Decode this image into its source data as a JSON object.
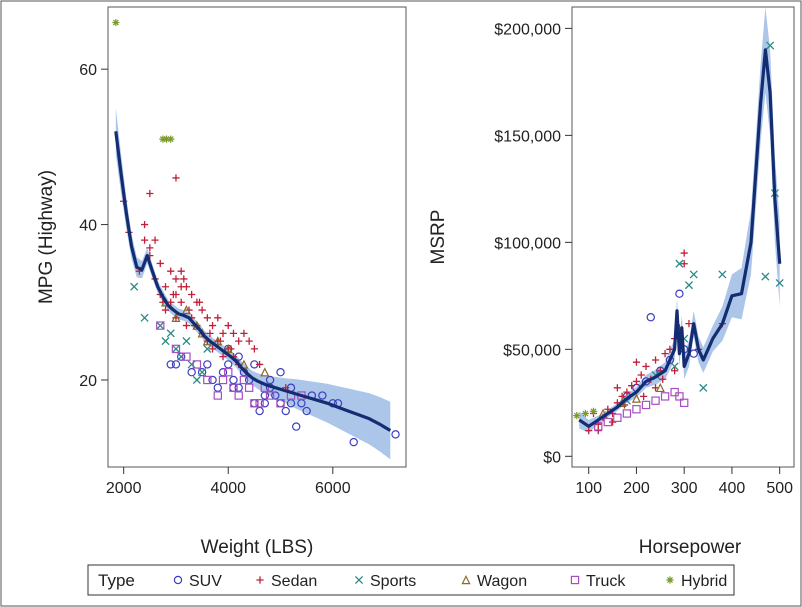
{
  "chart_data": [
    {
      "type": "scatter",
      "ylabel": "MPG (Highway)",
      "xlabel": "Weight (LBS)",
      "xlim": [
        1700,
        7400
      ],
      "ylim": [
        8.8,
        68
      ],
      "xticks": [
        2000,
        4000,
        6000
      ],
      "yticks": [
        20,
        40,
        60
      ],
      "xtick_labels": [
        "2000",
        "4000",
        "6000"
      ],
      "ytick_labels": [
        "20",
        "40",
        "60"
      ],
      "fit_line": {
        "x": [
          1850,
          1950,
          2050,
          2150,
          2250,
          2350,
          2450,
          2550,
          2650,
          2750,
          2850,
          2950,
          3050,
          3150,
          3250,
          3350,
          3450,
          3550,
          3650,
          3750,
          3850,
          3950,
          4050,
          4150,
          4250,
          4350,
          4450,
          4550,
          4650,
          4750,
          4900,
          5100,
          5300,
          5500,
          5700,
          5900,
          6100,
          6300,
          6500,
          6700,
          6900,
          7100
        ],
        "y": [
          52,
          46.5,
          41.5,
          37.2,
          34.5,
          34.2,
          36,
          34,
          32,
          30.7,
          29.6,
          29,
          28.5,
          28.3,
          28,
          27.2,
          26.5,
          25.6,
          25,
          24.5,
          24,
          23.5,
          23,
          22.4,
          21.6,
          20.9,
          20.3,
          19.9,
          19.6,
          19.3,
          19,
          18.6,
          18.2,
          17.8,
          17.4,
          17,
          16.5,
          16,
          15.5,
          15,
          14.3,
          13.5
        ],
        "band": [
          3,
          2.5,
          2,
          1.6,
          1.3,
          1.1,
          1,
          0.9,
          0.8,
          0.8,
          0.7,
          0.7,
          0.7,
          0.7,
          0.7,
          0.7,
          0.7,
          0.7,
          0.7,
          0.7,
          0.7,
          0.7,
          0.7,
          0.8,
          0.8,
          0.9,
          0.9,
          1,
          1.1,
          1.2,
          1.4,
          1.6,
          1.9,
          2.1,
          2.3,
          2.5,
          2.7,
          2.9,
          3.1,
          3.3,
          3.5,
          3.7
        ]
      },
      "series": [
        {
          "name": "SUV",
          "x": [
            2900,
            3000,
            3100,
            3300,
            3500,
            3700,
            3800,
            3900,
            4000,
            4100,
            4200,
            4300,
            4400,
            4500,
            4600,
            4700,
            4800,
            4900,
            5000,
            5100,
            5200,
            5300,
            5400,
            5600,
            5800,
            6000,
            6100,
            6400,
            7200,
            4000,
            4500,
            5000,
            3600,
            4200,
            4800,
            5500,
            4100,
            4700,
            5200
          ],
          "y": [
            22,
            22,
            23,
            21,
            21,
            20,
            19,
            21,
            22,
            20,
            19,
            21,
            20,
            17,
            16,
            18,
            19,
            18,
            17,
            16,
            17,
            14,
            17,
            18,
            18,
            17,
            17,
            12,
            13,
            24,
            22,
            21,
            22,
            23,
            20,
            16,
            19,
            17,
            19
          ]
        },
        {
          "name": "Sedan",
          "x": [
            2000,
            2100,
            2300,
            2400,
            2500,
            2500,
            2600,
            2600,
            2700,
            2700,
            2800,
            2800,
            2900,
            2900,
            3000,
            3000,
            3000,
            3100,
            3100,
            3200,
            3200,
            3300,
            3300,
            3400,
            3400,
            3500,
            3500,
            3600,
            3600,
            3700,
            3700,
            3800,
            3800,
            3900,
            3900,
            4000,
            4000,
            4100,
            4100,
            4200,
            4200,
            4300,
            4400,
            4500,
            4600,
            5100,
            3000,
            2500,
            2400,
            3100,
            3250,
            3450,
            3650,
            3850,
            4050,
            2750,
            2950,
            3150,
            3350
          ],
          "y": [
            43,
            39,
            34,
            40,
            44,
            37,
            38,
            33,
            35,
            31,
            32,
            29,
            34,
            30,
            46,
            33,
            28,
            34,
            30,
            32,
            27,
            31,
            28,
            30,
            27,
            29,
            26,
            28,
            25,
            27,
            24,
            28,
            25,
            26,
            23,
            27,
            24,
            26,
            23,
            25,
            22,
            26,
            25,
            24,
            22,
            19,
            31,
            36,
            38,
            32,
            29,
            30,
            26,
            25,
            24,
            30,
            31,
            33,
            27
          ]
        },
        {
          "name": "Sports",
          "x": [
            2200,
            2400,
            2700,
            2800,
            2900,
            3000,
            3100,
            3200,
            3300,
            3400,
            3500,
            3600
          ],
          "y": [
            32,
            28,
            27,
            25,
            26,
            24,
            23,
            25,
            22,
            20,
            21,
            24
          ]
        },
        {
          "name": "Wagon",
          "x": [
            2800,
            3000,
            3200,
            3400,
            3500,
            3600,
            3800,
            4000,
            4300,
            4700
          ],
          "y": [
            30,
            28,
            29,
            27,
            26,
            25,
            25,
            24,
            22,
            21
          ]
        },
        {
          "name": "Truck",
          "x": [
            2700,
            3200,
            3600,
            3800,
            3900,
            4000,
            4100,
            4200,
            4300,
            4400,
            4500,
            4600,
            4800,
            5000,
            5200,
            5400,
            3000,
            3400,
            4700
          ],
          "y": [
            27,
            23,
            20,
            18,
            20,
            21,
            19,
            18,
            20,
            19,
            17,
            17,
            18,
            17,
            18,
            18,
            24,
            22,
            19
          ]
        },
        {
          "name": "Hybrid",
          "x": [
            1850,
            2750,
            2820,
            2900
          ],
          "y": [
            66,
            51,
            51,
            51
          ]
        }
      ]
    },
    {
      "type": "scatter",
      "ylabel": "MSRP",
      "xlabel": "Horsepower",
      "xlim": [
        65,
        530
      ],
      "ylim": [
        -5000,
        210000
      ],
      "xticks": [
        100,
        200,
        300,
        400,
        500
      ],
      "yticks": [
        0,
        50000,
        100000,
        150000,
        200000
      ],
      "xtick_labels": [
        "100",
        "200",
        "300",
        "400",
        "500"
      ],
      "ytick_labels": [
        "$0",
        "$50,000",
        "$100,000",
        "$150,000",
        "$200,000"
      ],
      "fit_line": {
        "x": [
          80,
          100,
          120,
          140,
          160,
          180,
          200,
          220,
          240,
          260,
          270,
          280,
          285,
          290,
          295,
          300,
          310,
          320,
          330,
          340,
          350,
          360,
          380,
          400,
          420,
          440,
          460,
          470,
          480,
          490,
          500
        ],
        "y": [
          17000,
          14000,
          17000,
          20000,
          23000,
          27000,
          30000,
          35000,
          37000,
          40000,
          45000,
          50000,
          68000,
          48000,
          60000,
          42000,
          48000,
          62000,
          50000,
          45000,
          50000,
          55000,
          62000,
          75000,
          76000,
          100000,
          165000,
          190000,
          170000,
          120000,
          90000
        ],
        "band": [
          4000,
          3000,
          2000,
          1800,
          1800,
          2000,
          2500,
          3000,
          3500,
          4000,
          4500,
          5000,
          6000,
          6000,
          6000,
          6000,
          6000,
          6000,
          6000,
          6000,
          6000,
          6000,
          8000,
          10000,
          12000,
          15000,
          18000,
          20000,
          20000,
          20000,
          20000
        ]
      },
      "series": [
        {
          "name": "SUV",
          "x": [
            230,
            290,
            180,
            200,
            220,
            250,
            270,
            300,
            320
          ],
          "y": [
            65000,
            76000,
            28000,
            32000,
            35000,
            40000,
            45000,
            50000,
            48000
          ]
        },
        {
          "name": "Sedan",
          "x": [
            100,
            110,
            120,
            130,
            140,
            150,
            160,
            170,
            180,
            190,
            200,
            210,
            220,
            230,
            240,
            250,
            260,
            270,
            280,
            290,
            300,
            300,
            310,
            330,
            380,
            160,
            200,
            240,
            280,
            120,
            150,
            175,
            215,
            255
          ],
          "y": [
            12000,
            20000,
            15000,
            18000,
            22000,
            20000,
            25000,
            28000,
            30000,
            33000,
            35000,
            38000,
            42000,
            36000,
            45000,
            40000,
            48000,
            50000,
            55000,
            60000,
            95000,
            90000,
            62000,
            50000,
            62000,
            32000,
            44000,
            32000,
            40000,
            12000,
            16000,
            24000,
            28000,
            36000
          ]
        },
        {
          "name": "Sports",
          "x": [
            180,
            240,
            280,
            290,
            300,
            310,
            320,
            340,
            380,
            470,
            480,
            490,
            500
          ],
          "y": [
            26000,
            38000,
            42000,
            90000,
            55000,
            80000,
            85000,
            32000,
            85000,
            84000,
            192000,
            123000,
            81000
          ]
        },
        {
          "name": "Wagon",
          "x": [
            130,
            170,
            200,
            250
          ],
          "y": [
            20000,
            25000,
            27000,
            32000
          ]
        },
        {
          "name": "Truck",
          "x": [
            120,
            140,
            160,
            180,
            200,
            220,
            240,
            260,
            280,
            290,
            300
          ],
          "y": [
            14000,
            16000,
            18000,
            20000,
            22000,
            24000,
            26000,
            28000,
            30000,
            28000,
            25000
          ]
        },
        {
          "name": "Hybrid",
          "x": [
            75,
            93,
            110
          ],
          "y": [
            19000,
            20000,
            21000
          ]
        }
      ]
    }
  ],
  "legend": {
    "title": "Type",
    "placement": "bottom",
    "items": [
      {
        "name": "SUV",
        "marker": "circle",
        "color": "#3d3dc0"
      },
      {
        "name": "Sedan",
        "marker": "plus",
        "color": "#c0203a"
      },
      {
        "name": "Sports",
        "marker": "x",
        "color": "#2b8a84"
      },
      {
        "name": "Wagon",
        "marker": "triangle",
        "color": "#8a6a2a"
      },
      {
        "name": "Truck",
        "marker": "square",
        "color": "#a84ec0"
      },
      {
        "name": "Hybrid",
        "marker": "star",
        "color": "#7a9a2a"
      }
    ]
  },
  "colors": {
    "fit_line": "#142c72",
    "band": "#8fb3e2"
  }
}
